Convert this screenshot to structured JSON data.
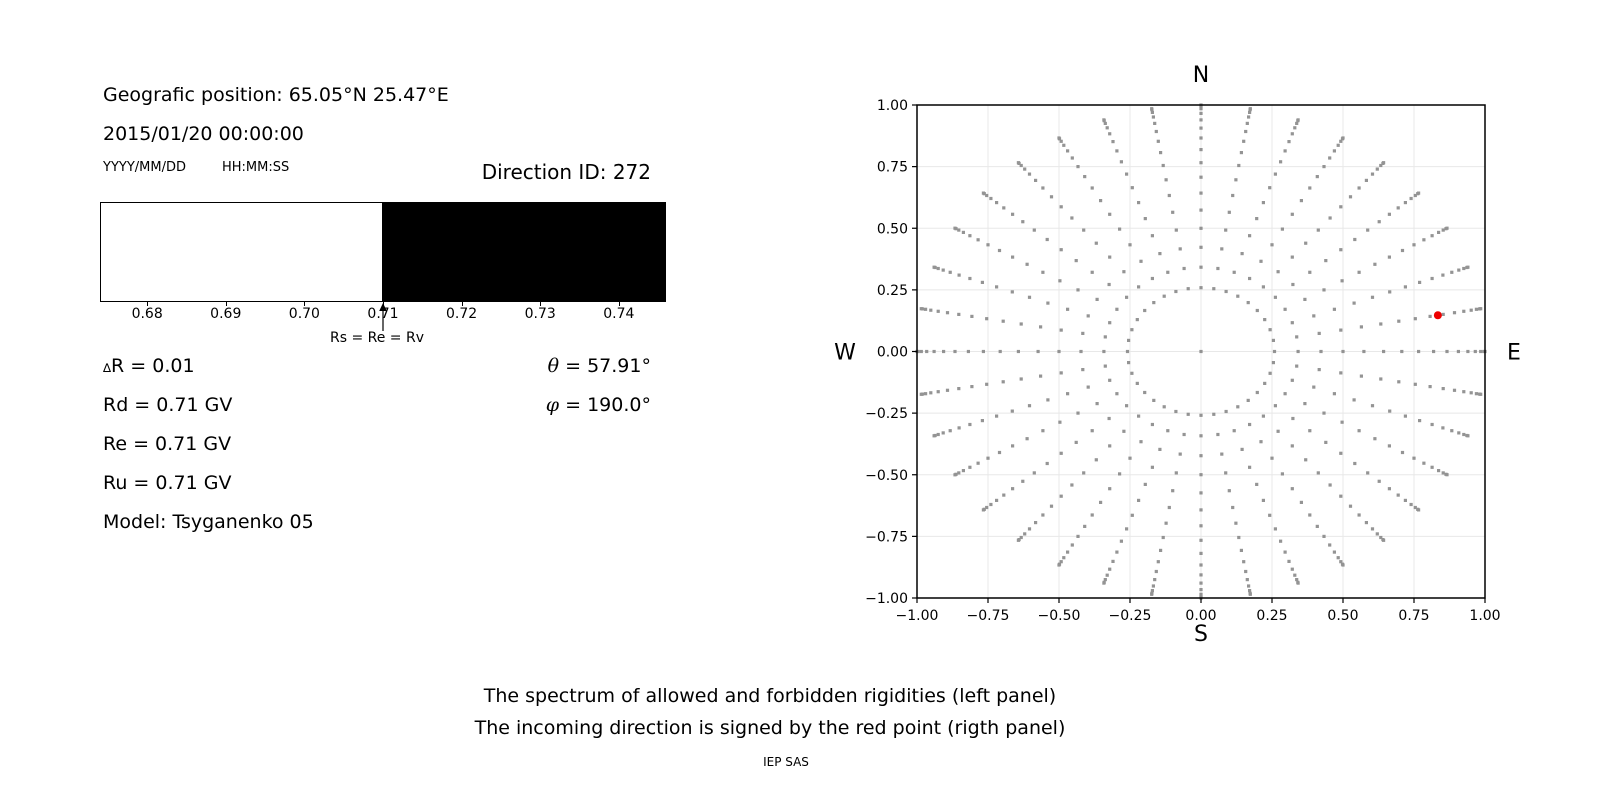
{
  "info_panel": {
    "geographic_position": "Geografic position: 65.05°N 25.47°E",
    "datetime": "2015/01/20 00:00:00",
    "date_format_label": "YYYY/MM/DD",
    "time_format_label": "HH:MM:SS",
    "direction_id": "Direction ID: 272",
    "params": {
      "delta_symbol": "∆",
      "delta_r": "R = 0.01",
      "rd": "Rd = 0.71 GV",
      "re": "Re = 0.71 GV",
      "ru": "Ru = 0.71 GV",
      "model": "Model: Tsyganenko 05",
      "theta_symbol": "θ",
      "theta_value": " = 57.91°",
      "phi_symbol": "φ",
      "phi_value": " = 190.0°"
    }
  },
  "caption": {
    "line1": "The spectrum of allowed and forbidden rigidities (left panel)",
    "line2": "The incoming direction is signed by the red point (rigth panel)",
    "credit": "IEP SAS"
  },
  "chart_data": [
    {
      "name": "rigidity-spectrum",
      "type": "bar",
      "xlim": [
        0.674,
        0.746
      ],
      "xticks": [
        0.68,
        0.69,
        0.7,
        0.71,
        0.72,
        0.73,
        0.74
      ],
      "bands": [
        {
          "from": 0.674,
          "to": 0.71,
          "color": "#ffffff",
          "meaning": "allowed rigidities"
        },
        {
          "from": 0.71,
          "to": 0.746,
          "color": "#000000",
          "meaning": "forbidden rigidities"
        }
      ],
      "annotation": {
        "text": "Rs = Re = Rv",
        "x": 0.71
      }
    },
    {
      "name": "incoming-direction-map",
      "type": "scatter",
      "xlim": [
        -1.0,
        1.0
      ],
      "ylim": [
        -1.0,
        1.0
      ],
      "xticks": [
        -1.0,
        -0.75,
        -0.5,
        -0.25,
        0.0,
        0.25,
        0.5,
        0.75,
        1.0
      ],
      "yticks": [
        -1.0,
        -0.75,
        -0.5,
        -0.25,
        0.0,
        0.25,
        0.5,
        0.75,
        1.0
      ],
      "grid": true,
      "cardinal_labels": {
        "top": "N",
        "bottom": "S",
        "left": "W",
        "right": "E"
      },
      "direction_grid": {
        "azimuth_deg": {
          "start": 0,
          "step": 10,
          "count": 36
        },
        "zenith_deg": {
          "start": 15,
          "step": 5,
          "count": 16
        },
        "radius_rule": "r = sin(zenith); x = r*sin(azimuth); y = r*cos(azimuth)",
        "center_point": true,
        "dot_color": "#898989"
      },
      "red_point": {
        "x": 0.834,
        "y": 0.147,
        "theta_deg": 57.91,
        "phi_deg": 190.0,
        "color": "#ee0000"
      },
      "grid_color": "#e8e8e8"
    }
  ]
}
